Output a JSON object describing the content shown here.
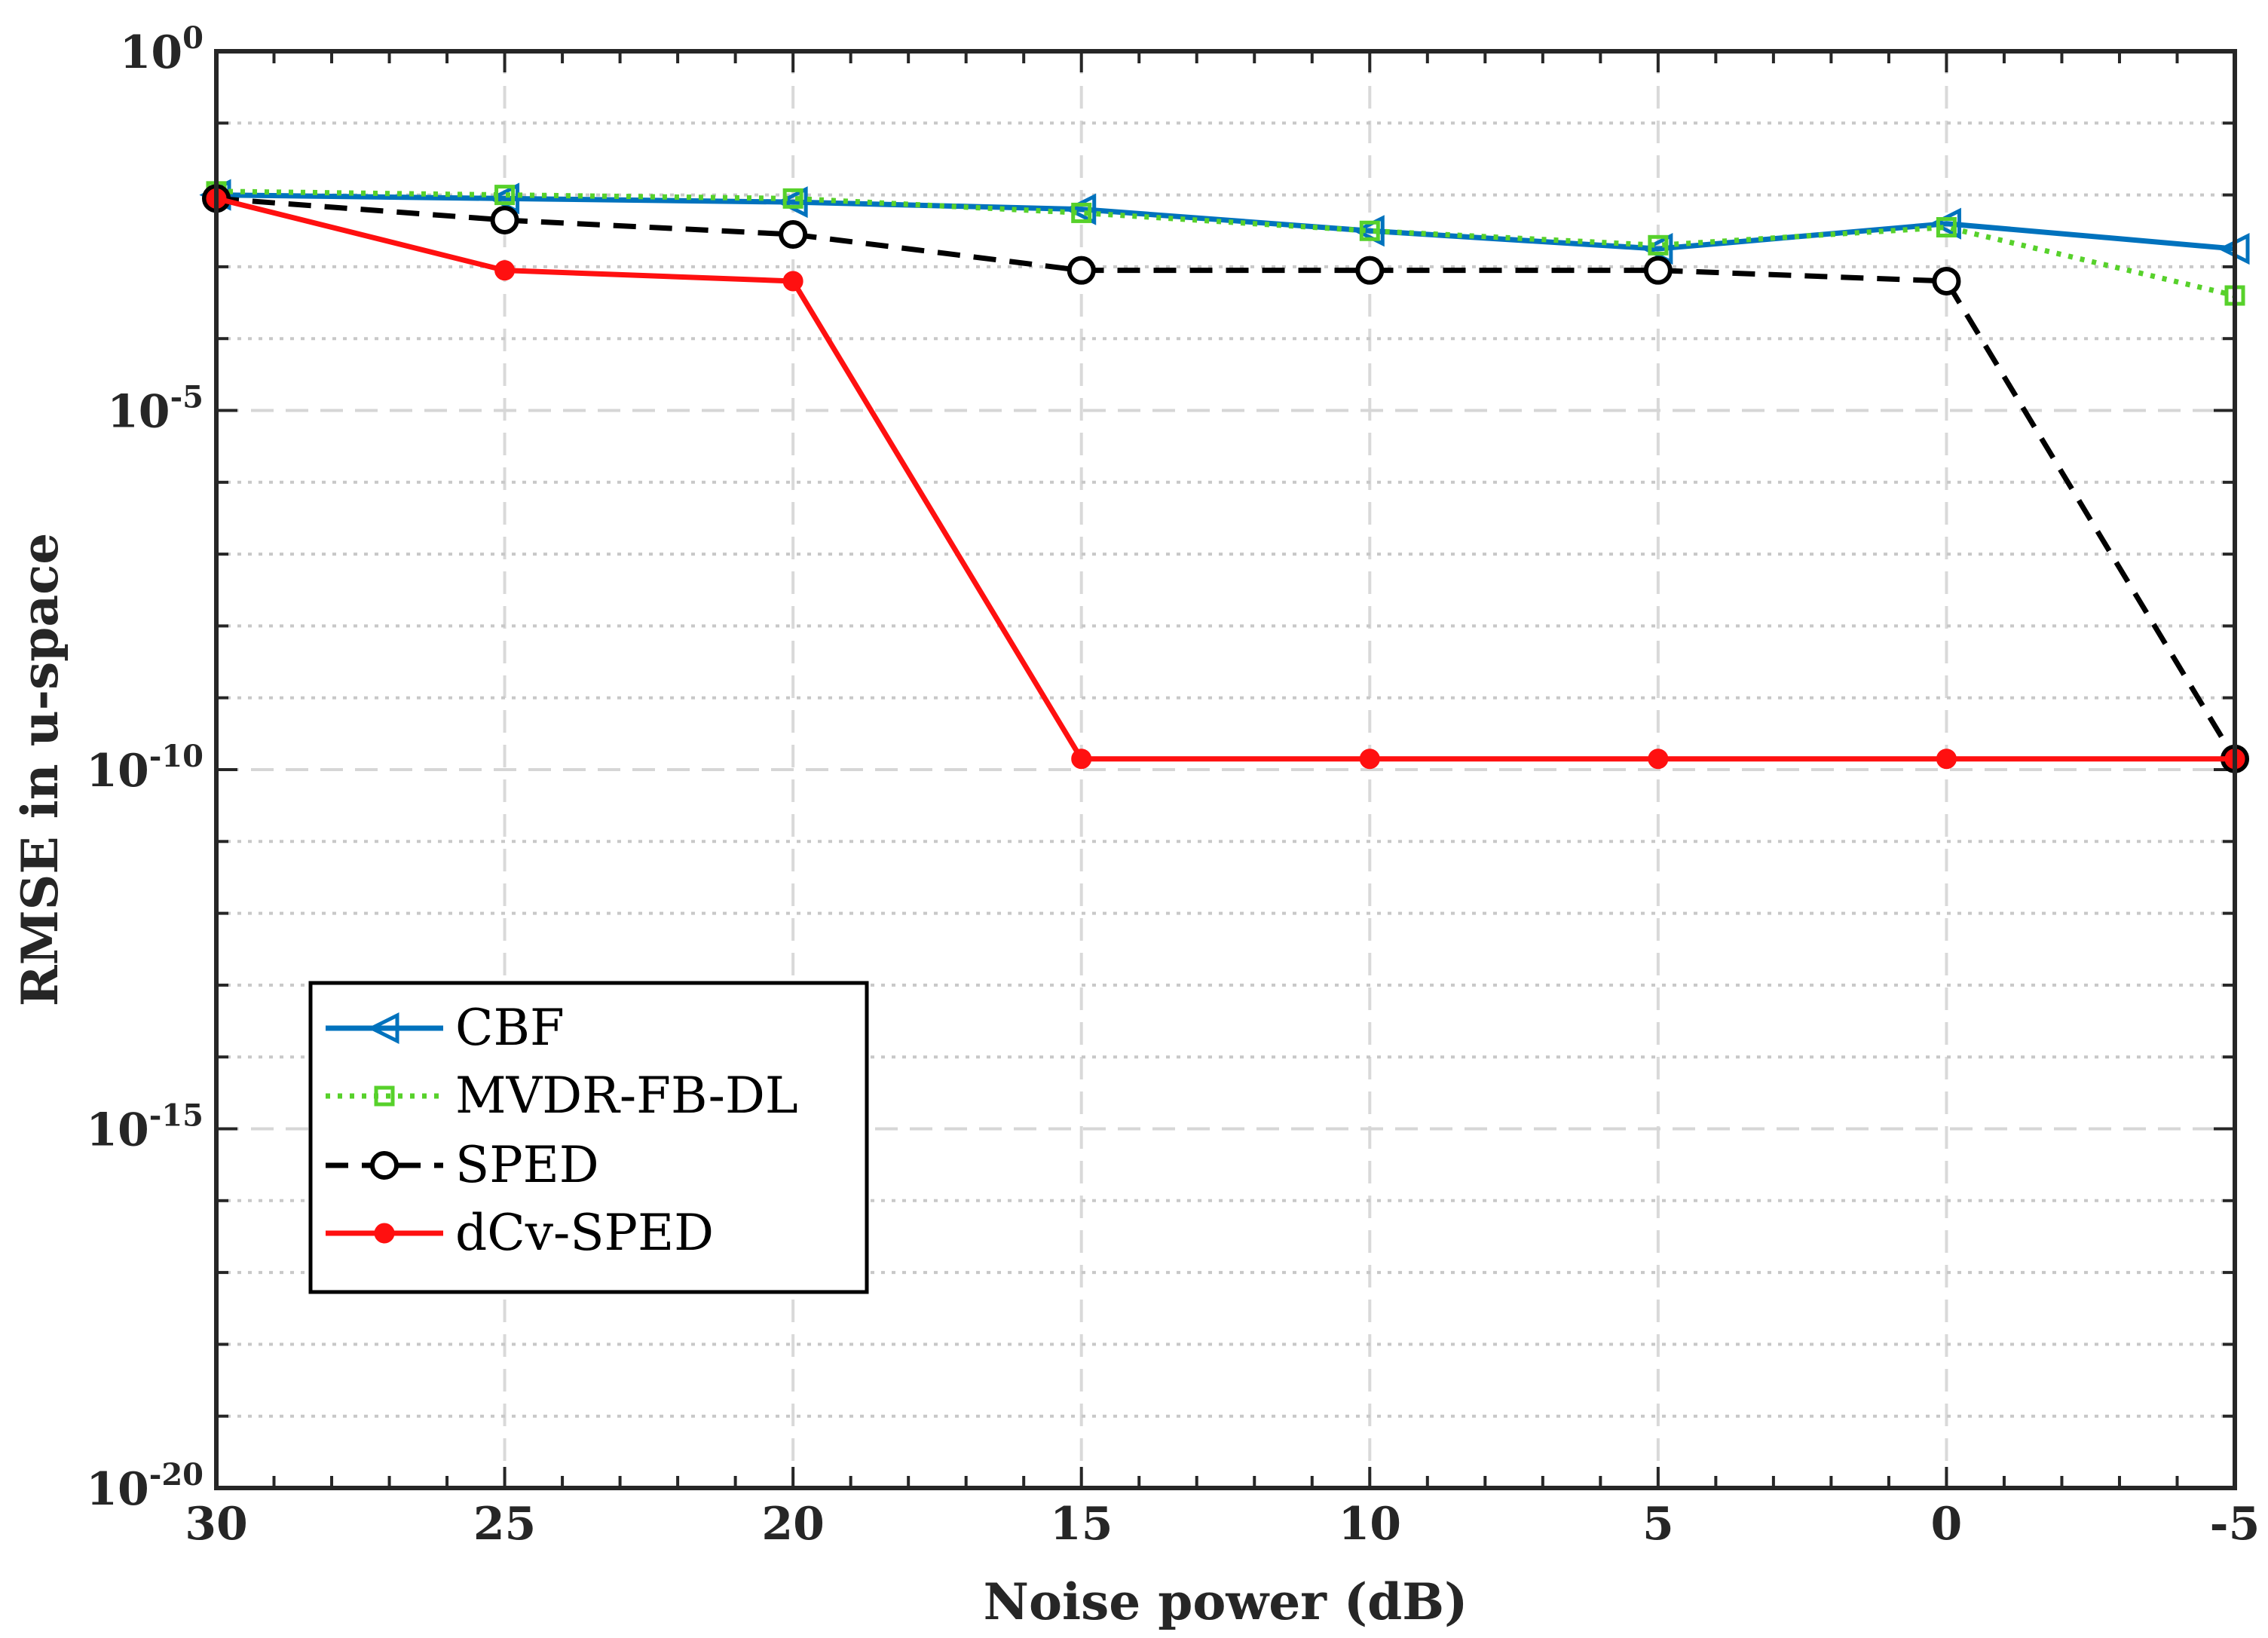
{
  "chart_data": {
    "type": "line",
    "xlabel": "Noise power (dB)",
    "ylabel": "RMSE in u-space",
    "yscale": "log",
    "xlim": [
      30,
      -5
    ],
    "ylim_exponent": [
      -20,
      0
    ],
    "x": [
      30,
      25,
      20,
      15,
      10,
      5,
      0,
      -5
    ],
    "x_tick_labels": [
      "30",
      "25",
      "20",
      "15",
      "10",
      "5",
      "0",
      "-5"
    ],
    "y_ticks": [
      {
        "base": "10",
        "exp": "0"
      },
      {
        "base": "10",
        "exp": "-5"
      },
      {
        "base": "10",
        "exp": "-10"
      },
      {
        "base": "10",
        "exp": "-15"
      },
      {
        "base": "10",
        "exp": "-20"
      }
    ],
    "grid": true,
    "legend_position": "lower-left",
    "series": [
      {
        "name": "CBF",
        "color": "#0072BD",
        "marker": "triangle-left",
        "dash": "solid",
        "log10_values": [
          -2.0,
          -2.05,
          -2.1,
          -2.2,
          -2.5,
          -2.75,
          -2.4,
          -2.75
        ]
      },
      {
        "name": "MVDR-FB-DL",
        "color": "#57D12B",
        "marker": "square",
        "dash": "dotted",
        "log10_values": [
          -1.95,
          -2.0,
          -2.05,
          -2.25,
          -2.5,
          -2.7,
          -2.45,
          -3.4
        ]
      },
      {
        "name": "SPED",
        "color": "#000000",
        "marker": "circle-open",
        "dash": "dashed",
        "log10_values": [
          -2.05,
          -2.35,
          -2.55,
          -3.05,
          -3.05,
          -3.05,
          -3.2,
          -9.85
        ]
      },
      {
        "name": "dCv-SPED",
        "color": "#FF1010",
        "marker": "circle-filled",
        "dash": "solid",
        "log10_values": [
          -2.05,
          -3.05,
          -3.2,
          -9.85,
          -9.85,
          -9.85,
          -9.85,
          -9.85
        ]
      }
    ]
  }
}
